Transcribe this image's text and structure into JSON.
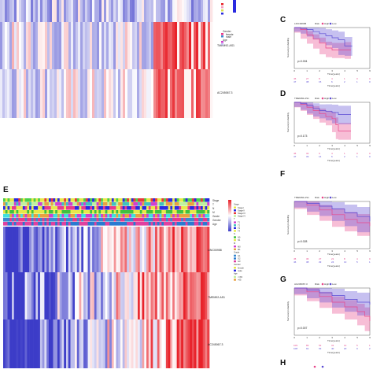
{
  "panels": {
    "c": "C",
    "d": "D",
    "e": "E",
    "f": "F",
    "g": "G",
    "h": "H"
  },
  "top_heatmap": {
    "genes": [
      "TMEM92-AS1",
      "AC245067.3"
    ],
    "legend": {
      "items": [
        "Gender",
        "female",
        "male",
        "Age",
        "<=65",
        ">65"
      ]
    }
  },
  "bottom_heatmap": {
    "annotations": [
      "Stage",
      "T",
      "N",
      "M",
      "Grade",
      "Gender",
      "Age"
    ],
    "genes": [
      "LINC00958",
      "TMEM92-AS1",
      "AC245067.3"
    ],
    "legend_items": [
      "Stage",
      "Stage I",
      "Stage II",
      "Stage III",
      "Stage IV",
      "T",
      "T1",
      "T2",
      "T3",
      "T4",
      "N",
      "N0",
      "N1",
      "M",
      "M0",
      "M1",
      "Grade",
      "G1",
      "G2",
      "G3",
      "Gender",
      "female",
      "male",
      "Age",
      "<=65",
      ">65"
    ]
  },
  "km_plots": [
    {
      "id": "C",
      "gene": "LINC00958",
      "pvalue": "p=0.004",
      "ylabel": "Survival probability",
      "xlabel": "Time(years)",
      "legend": [
        "Risk",
        "High",
        "Low"
      ],
      "xticks": [
        "0",
        "1",
        "2",
        "3",
        "4",
        "5",
        "6"
      ],
      "risk_high": [
        "46",
        "27",
        "8",
        "4",
        "1",
        "0",
        "0"
      ],
      "risk_low": [
        "47",
        "38",
        "15",
        "6",
        "2",
        "1",
        "0"
      ],
      "high_curve": [
        [
          0,
          1.0
        ],
        [
          0.5,
          0.95
        ],
        [
          1,
          0.82
        ],
        [
          1.5,
          0.72
        ],
        [
          2,
          0.62
        ],
        [
          2.5,
          0.5
        ],
        [
          3,
          0.45
        ],
        [
          4,
          0.45
        ],
        [
          4.5,
          0.45
        ]
      ],
      "low_curve": [
        [
          0,
          1.0
        ],
        [
          0.5,
          0.98
        ],
        [
          1,
          0.95
        ],
        [
          1.5,
          0.9
        ],
        [
          2,
          0.85
        ],
        [
          2.5,
          0.8
        ],
        [
          3,
          0.75
        ],
        [
          3.5,
          0.7
        ],
        [
          4,
          0.55
        ],
        [
          4.6,
          0.55
        ]
      ]
    },
    {
      "id": "D",
      "gene": "TMEM92-AS1",
      "pvalue": "p=0.173",
      "ylabel": "Survival probability",
      "xlabel": "Time(years)",
      "legend": [
        "Risk",
        "High",
        "Low"
      ],
      "xticks": [
        "0",
        "1",
        "2",
        "3",
        "4",
        "5",
        "6"
      ],
      "risk_high": [
        "46",
        "32",
        "9",
        "4",
        "1",
        "0",
        "0"
      ],
      "risk_low": [
        "47",
        "33",
        "14",
        "6",
        "2",
        "1",
        "0"
      ],
      "high_curve": [
        [
          0,
          1.0
        ],
        [
          0.5,
          0.95
        ],
        [
          1,
          0.88
        ],
        [
          1.5,
          0.8
        ],
        [
          2,
          0.72
        ],
        [
          2.5,
          0.65
        ],
        [
          3,
          0.6
        ],
        [
          3.3,
          0.45
        ],
        [
          3.5,
          0.3
        ],
        [
          4.5,
          0.3
        ]
      ],
      "low_curve": [
        [
          0,
          1.0
        ],
        [
          0.5,
          0.97
        ],
        [
          1,
          0.92
        ],
        [
          1.5,
          0.85
        ],
        [
          2,
          0.8
        ],
        [
          2.5,
          0.78
        ],
        [
          3,
          0.75
        ],
        [
          3.5,
          0.7
        ],
        [
          4.5,
          0.7
        ]
      ]
    },
    {
      "id": "F",
      "gene": "TMEM92-AS1",
      "pvalue": "p=0.028",
      "ylabel": "Survival probability",
      "xlabel": "Time(years)",
      "legend": [
        "Risk",
        "High",
        "Low"
      ],
      "xticks": [
        "0",
        "1",
        "2",
        "3",
        "4",
        "5",
        "6"
      ],
      "risk_high": [
        "45",
        "36",
        "27",
        "21",
        "8",
        "4",
        "0"
      ],
      "risk_low": [
        "46",
        "38",
        "29",
        "24",
        "13",
        "5",
        "1"
      ],
      "high_curve": [
        [
          0,
          1.0
        ],
        [
          1,
          0.92
        ],
        [
          2,
          0.82
        ],
        [
          3,
          0.72
        ],
        [
          4,
          0.62
        ],
        [
          5,
          0.55
        ],
        [
          6,
          0.48
        ]
      ],
      "low_curve": [
        [
          0,
          1.0
        ],
        [
          1,
          0.96
        ],
        [
          2,
          0.9
        ],
        [
          3,
          0.84
        ],
        [
          4,
          0.76
        ],
        [
          5,
          0.68
        ],
        [
          6,
          0.58
        ]
      ]
    },
    {
      "id": "G",
      "gene": "AC245067.3",
      "pvalue": "p=0.007",
      "ylabel": "Survival probability",
      "xlabel": "Time(years)",
      "legend": [
        "Risk",
        "High",
        "Low"
      ],
      "xticks": [
        "0",
        "1",
        "2",
        "3",
        "4",
        "5",
        "6"
      ],
      "risk_high": [
        "109",
        "83",
        "52",
        "31",
        "14",
        "5",
        "1"
      ],
      "risk_low": [
        "108",
        "91",
        "63",
        "40",
        "20",
        "9",
        "2"
      ],
      "high_curve": [
        [
          0,
          1.0
        ],
        [
          1,
          0.92
        ],
        [
          2,
          0.82
        ],
        [
          3,
          0.7
        ],
        [
          4,
          0.6
        ],
        [
          5,
          0.5
        ],
        [
          5.6,
          0.4
        ],
        [
          6,
          0.3
        ]
      ],
      "low_curve": [
        [
          0,
          1.0
        ],
        [
          1,
          0.96
        ],
        [
          2,
          0.9
        ],
        [
          3,
          0.84
        ],
        [
          4,
          0.76
        ],
        [
          5,
          0.7
        ],
        [
          6,
          0.65
        ]
      ]
    }
  ],
  "colors": {
    "high": "#e8468a",
    "low": "#5b4bd4",
    "heat_high": "#e8222a",
    "heat_mid": "#ffffff",
    "heat_low": "#3c3cc8"
  }
}
